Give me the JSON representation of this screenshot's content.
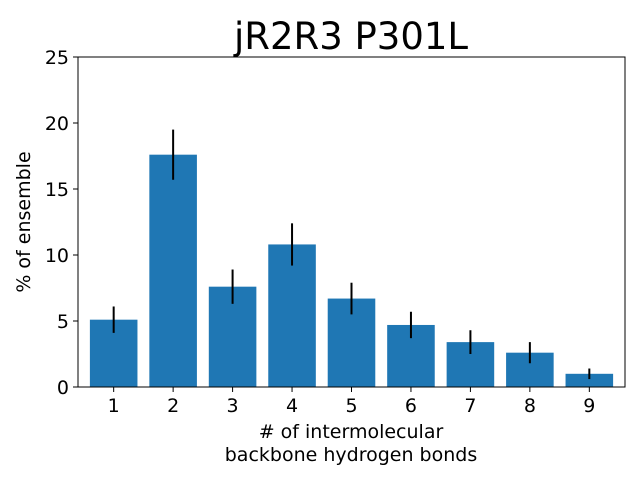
{
  "chart_data": {
    "type": "bar",
    "title": "jR2R3 P301L",
    "xlabel_lines": [
      "# of intermolecular",
      "backbone hydrogen bonds"
    ],
    "ylabel": "% of ensemble",
    "categories": [
      "1",
      "2",
      "3",
      "4",
      "5",
      "6",
      "7",
      "8",
      "9"
    ],
    "values": [
      5.1,
      17.6,
      7.6,
      10.8,
      6.7,
      4.7,
      3.4,
      2.6,
      1.0
    ],
    "errors": [
      1.0,
      1.9,
      1.3,
      1.6,
      1.2,
      1.0,
      0.9,
      0.8,
      0.4
    ],
    "ylim": [
      0,
      25
    ],
    "yticks": [
      0,
      5,
      10,
      15,
      20,
      25
    ],
    "bar_color": "#1f77b4",
    "error_color": "#000000",
    "grid": false,
    "legend": "none"
  }
}
